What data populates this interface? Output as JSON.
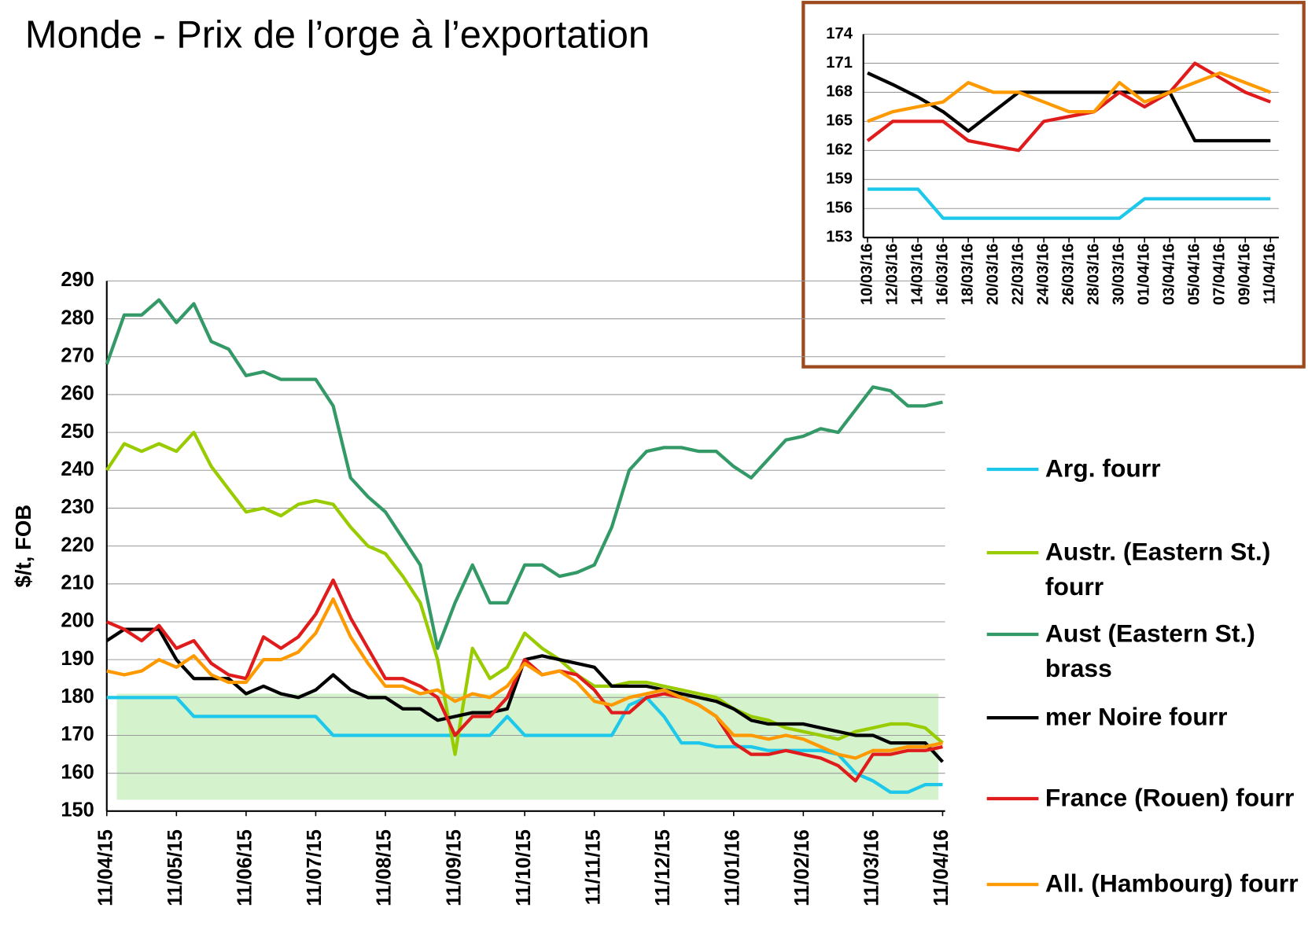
{
  "chart_data": [
    {
      "type": "line",
      "title": "Monde - Prix de l’orge à l’exportation",
      "ylabel": "$/t, FOB",
      "categories": [
        "11/04/15",
        null,
        null,
        null,
        "11/05/15",
        null,
        null,
        null,
        "11/06/15",
        null,
        null,
        null,
        "11/07/15",
        null,
        null,
        null,
        "11/08/15",
        null,
        null,
        null,
        "11/09/15",
        null,
        null,
        null,
        "11/10/15",
        null,
        null,
        null,
        "11/11/15",
        null,
        null,
        null,
        "11/12/15",
        null,
        null,
        null,
        "11/01/16",
        null,
        null,
        null,
        "11/02/16",
        null,
        null,
        null,
        "11/03/16",
        null,
        null,
        null,
        "11/04/16"
      ],
      "ylim": [
        150,
        290
      ],
      "yticks": [
        150,
        160,
        170,
        180,
        190,
        200,
        210,
        220,
        230,
        240,
        250,
        260,
        270,
        280,
        290
      ],
      "grid": true,
      "legend": "right",
      "series": [
        {
          "name": "Arg. fourr",
          "color": "#1ec8ea",
          "values": [
            180,
            180,
            180,
            180,
            180,
            175,
            175,
            175,
            175,
            175,
            175,
            175,
            175,
            170,
            170,
            170,
            170,
            170,
            170,
            170,
            170,
            170,
            170,
            175,
            170,
            170,
            170,
            170,
            170,
            170,
            178,
            180,
            175,
            168,
            168,
            167,
            167,
            167,
            166,
            166,
            166,
            166,
            165,
            160,
            158,
            155,
            155,
            157,
            157
          ]
        },
        {
          "name": "Austr. (Eastern St.) fourr",
          "color": "#99cc00",
          "values": [
            240,
            247,
            245,
            247,
            245,
            250,
            241,
            235,
            229,
            230,
            228,
            231,
            232,
            231,
            225,
            220,
            218,
            212,
            205,
            190,
            165,
            193,
            185,
            188,
            197,
            193,
            190,
            186,
            183,
            183,
            184,
            184,
            183,
            182,
            181,
            180,
            177,
            175,
            174,
            172,
            171,
            170,
            169,
            171,
            172,
            173,
            173,
            172,
            168
          ]
        },
        {
          "name": "Aust (Eastern St.) brass",
          "color": "#339966",
          "values": [
            268,
            281,
            281,
            285,
            279,
            284,
            274,
            272,
            265,
            266,
            264,
            264,
            264,
            257,
            238,
            233,
            229,
            222,
            215,
            193,
            205,
            215,
            205,
            205,
            215,
            215,
            212,
            213,
            215,
            225,
            240,
            245,
            246,
            246,
            245,
            245,
            241,
            238,
            243,
            248,
            249,
            251,
            250,
            256,
            262,
            261,
            257,
            257,
            258
          ]
        },
        {
          "name": "mer Noire fourr",
          "color": "#000000",
          "values": [
            195,
            198,
            198,
            198,
            190,
            185,
            185,
            185,
            181,
            183,
            181,
            180,
            182,
            186,
            182,
            180,
            180,
            177,
            177,
            174,
            175,
            176,
            176,
            177,
            190,
            191,
            190,
            189,
            188,
            183,
            183,
            183,
            182,
            181,
            180,
            179,
            177,
            174,
            173,
            173,
            173,
            172,
            171,
            170,
            170,
            168,
            168,
            168,
            163
          ]
        },
        {
          "name": "France (Rouen) fourr",
          "color": "#e01b1b",
          "values": [
            200,
            198,
            195,
            199,
            193,
            195,
            189,
            186,
            185,
            196,
            193,
            196,
            202,
            211,
            201,
            193,
            185,
            185,
            183,
            180,
            170,
            175,
            175,
            180,
            190,
            186,
            187,
            186,
            182,
            176,
            176,
            180,
            181,
            180,
            178,
            175,
            168,
            165,
            165,
            166,
            165,
            164,
            162,
            158,
            165,
            165,
            166,
            166,
            167
          ]
        },
        {
          "name": "All. (Hambourg) fourr",
          "color": "#ff9900",
          "values": [
            187,
            186,
            187,
            190,
            188,
            191,
            186,
            184,
            184,
            190,
            190,
            192,
            197,
            206,
            196,
            189,
            183,
            183,
            181,
            182,
            179,
            181,
            180,
            183,
            189,
            186,
            187,
            184,
            179,
            178,
            180,
            181,
            182,
            180,
            178,
            175,
            170,
            170,
            169,
            170,
            169,
            167,
            165,
            164,
            166,
            166,
            167,
            167,
            168
          ]
        }
      ]
    },
    {
      "type": "line",
      "categories": [
        "10/03/16",
        "12/03/16",
        "14/03/16",
        "16/03/16",
        "18/03/16",
        "20/03/16",
        "22/03/16",
        "24/03/16",
        "26/03/16",
        "28/03/16",
        "30/03/16",
        "01/04/16",
        "03/04/16",
        "05/04/16",
        "07/04/16",
        "09/04/16",
        "11/04/16"
      ],
      "ylim": [
        153,
        174
      ],
      "yticks": [
        153,
        156,
        159,
        162,
        165,
        168,
        171,
        174
      ],
      "grid": true,
      "series": [
        {
          "color": "#1ec8ea",
          "values": [
            158,
            158,
            158,
            155,
            155,
            155,
            155,
            155,
            155,
            155,
            155,
            157,
            157,
            157,
            157,
            157,
            157
          ]
        },
        {
          "color": "#000000",
          "values": [
            170,
            168.8,
            167.5,
            166,
            164,
            166,
            168,
            168,
            168,
            168,
            168,
            168,
            168,
            163,
            163,
            163,
            163
          ]
        },
        {
          "color": "#e01b1b",
          "values": [
            163,
            165,
            165,
            165,
            163,
            162.5,
            162,
            165,
            165.5,
            166,
            168,
            166.5,
            168,
            171,
            169.5,
            168,
            167
          ]
        },
        {
          "color": "#ff9900",
          "values": [
            165,
            166,
            166.5,
            167,
            169,
            168,
            168,
            167,
            166,
            166,
            169,
            167,
            168,
            169,
            170,
            169,
            168
          ]
        }
      ]
    }
  ]
}
